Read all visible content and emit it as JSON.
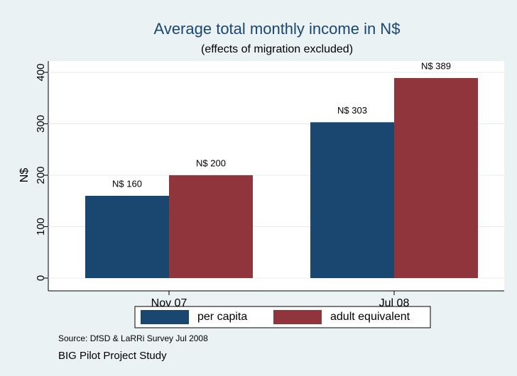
{
  "chart_data": {
    "type": "bar",
    "title": "Average total monthly income in N$",
    "subtitle": "(effects of migration excluded)",
    "y_label": "N$",
    "categories": [
      "Nov 07",
      "Jul 08"
    ],
    "series": [
      {
        "name": "per capita",
        "color": "#1a476f",
        "values": [
          160,
          303
        ],
        "value_labels": [
          "N$ 160",
          "N$ 303"
        ]
      },
      {
        "name": "adult equivalent",
        "color": "#90353b",
        "values": [
          200,
          389
        ],
        "value_labels": [
          "N$ 200",
          "N$ 389"
        ]
      }
    ],
    "ylim": [
      0,
      400
    ],
    "yticks": [
      0,
      100,
      200,
      300,
      400
    ],
    "grid": true,
    "legend": "bottom",
    "notes": [
      "Source: DfSD & LaRRi Survey Jul 2008",
      "BIG Pilot Project Study"
    ]
  }
}
